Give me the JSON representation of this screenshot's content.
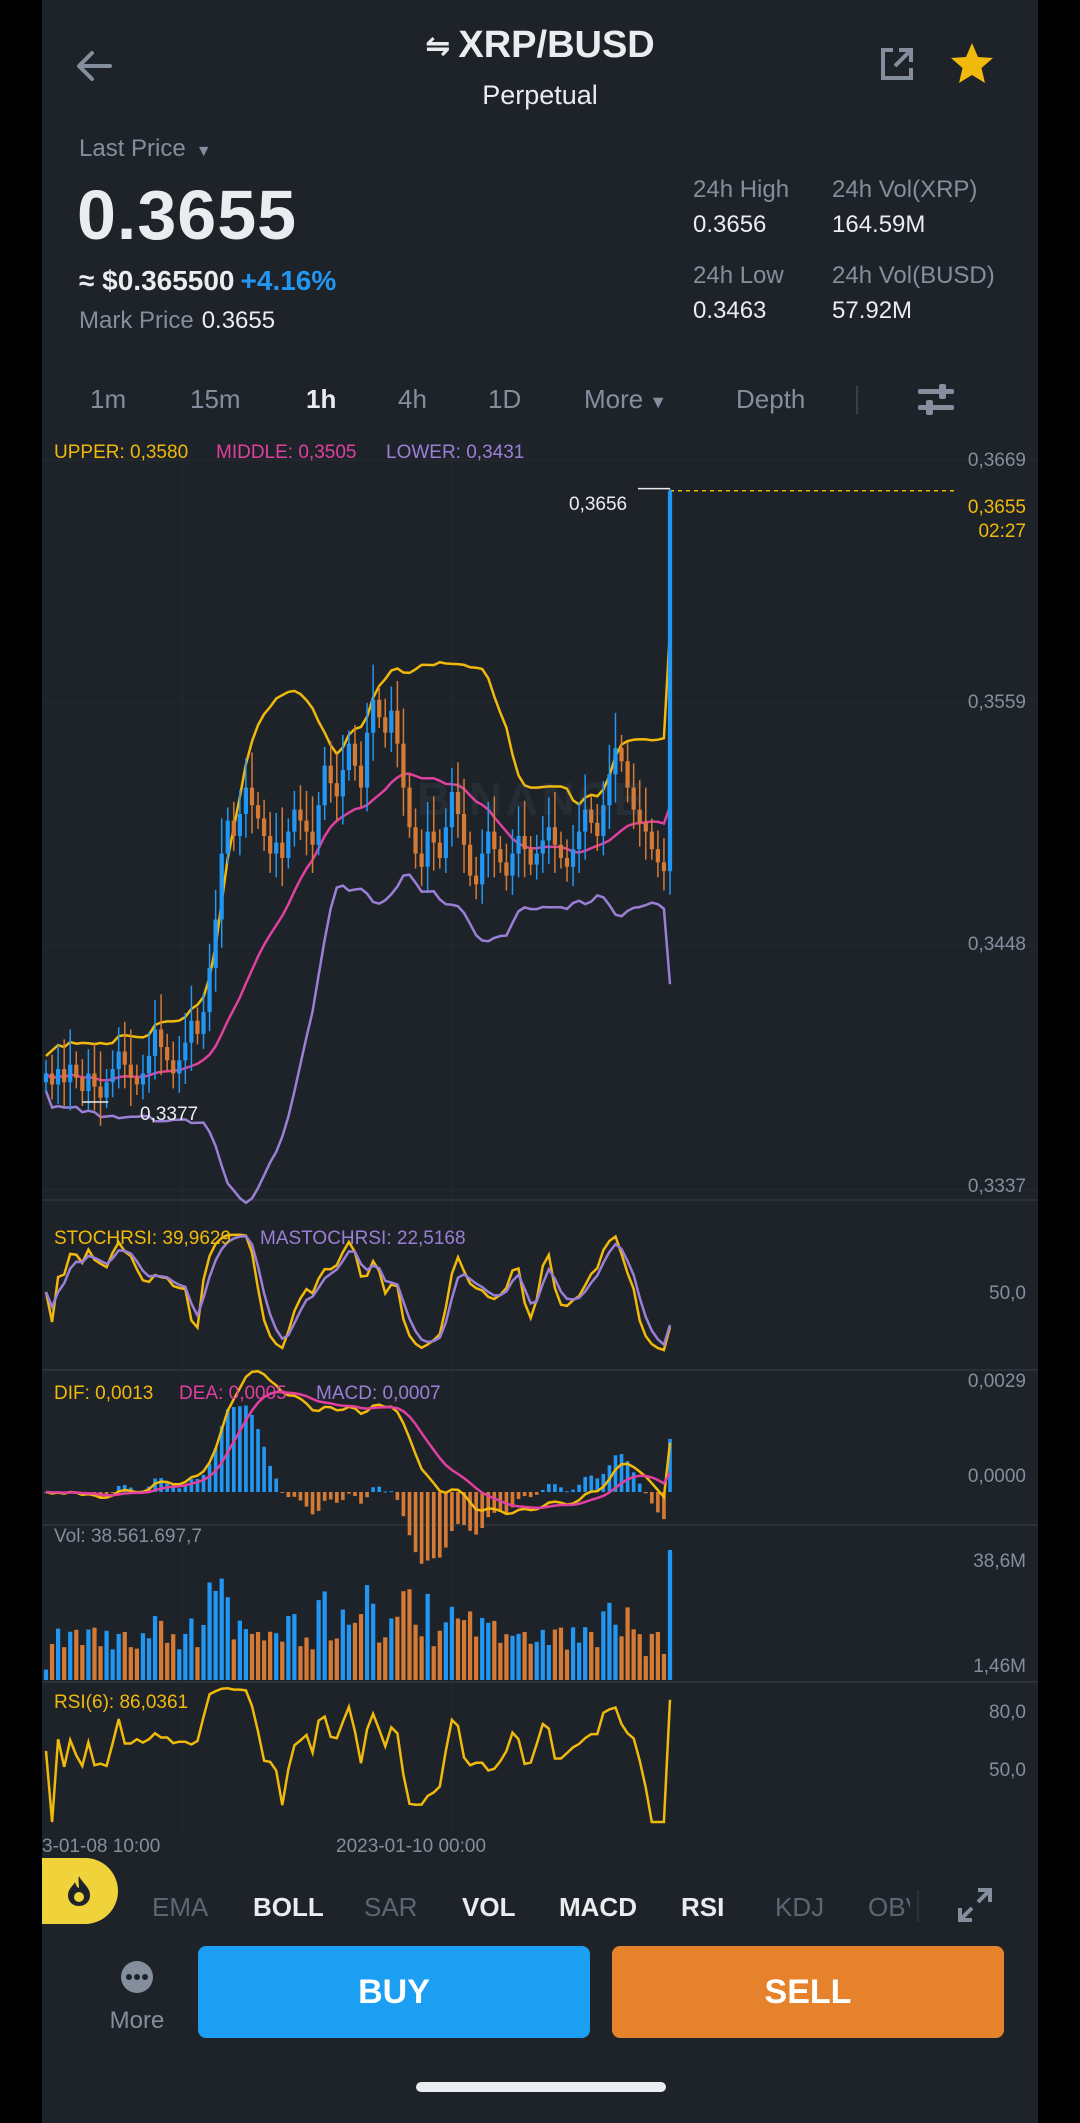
{
  "header": {
    "title": "XRP/BUSD",
    "subtitle": "Perpetual",
    "swap_icon": "swap-arrows-icon",
    "back_icon": "arrow-left-icon",
    "share_icon": "share-external-icon",
    "favorite_icon": "star-icon",
    "favorite_color": "#f0b90b"
  },
  "price": {
    "last_label": "Last Price",
    "last_price": "0.3655",
    "usd_value": "≈ $0.365500",
    "change": "+4.16%",
    "change_color": "#2196f3",
    "mark_label": "Mark Price",
    "mark_value": "0.3655"
  },
  "stats": {
    "high_label": "24h High",
    "high_value": "0.3656",
    "vol_base_label": "24h Vol(XRP)",
    "vol_base_value": "164.59M",
    "low_label": "24h Low",
    "low_value": "0.3463",
    "vol_quote_label": "24h Vol(BUSD)",
    "vol_quote_value": "57.92M"
  },
  "timeframes": {
    "items": [
      "1m",
      "15m",
      "1h",
      "4h",
      "1D"
    ],
    "active": "1h",
    "more": "More",
    "depth": "Depth"
  },
  "chart": {
    "boll": {
      "upper": "UPPER: 0,3580",
      "middle": "MIDDLE: 0,3505",
      "lower": "LOWER: 0,3431"
    },
    "price_axis": [
      "0,3669",
      "0,3559",
      "0,3448",
      "0,3337"
    ],
    "current_price": "0,3655",
    "countdown": "02:27",
    "high_marker": "0,3656",
    "low_marker": "0,3377",
    "watermark": "BINANCE",
    "stochrsi": {
      "k": "STOCHRSI: 39,9629",
      "d": "MASTOCHRSI: 22,5168",
      "axis": "50,0"
    },
    "macd": {
      "dif": "DIF: 0,0013",
      "dea": "DEA: 0,0005",
      "macd": "MACD: 0,0007",
      "axis_top": "0,0029",
      "axis_mid": "0,0000"
    },
    "vol": {
      "label": "Vol: 38.561.697,7",
      "axis_top": "38,6M",
      "axis_bottom": "1,46M"
    },
    "rsi": {
      "label": "RSI(6): 86,0361",
      "axis_top": "80,0",
      "axis_mid": "50,0"
    },
    "time_axis": [
      "3-01-08 10:00",
      "2023-01-10 00:00"
    ],
    "colors": {
      "up": "#2196f3",
      "down": "#d57a35",
      "upper": "#f0b90b",
      "middle": "#e040a0",
      "lower": "#9b7fd6"
    }
  },
  "chart_data": {
    "type": "candlestick",
    "pair": "XRP/BUSD",
    "interval": "1h",
    "ylim": [
      0.3337,
      0.3669
    ],
    "ticks": [
      0.3669,
      0.3559,
      0.3448,
      0.3337
    ],
    "start_label": "3-01-08 10:00",
    "mid_label": "2023-01-10 00:00",
    "last": 0.3655,
    "high": 0.3656,
    "low": 0.3377,
    "close": [
      0.339,
      0.3385,
      0.3392,
      0.3386,
      0.3394,
      0.3388,
      0.3382,
      0.339,
      0.3384,
      0.3379,
      0.3386,
      0.3392,
      0.34,
      0.3394,
      0.3388,
      0.3385,
      0.339,
      0.3398,
      0.341,
      0.3402,
      0.3396,
      0.339,
      0.3396,
      0.3404,
      0.3414,
      0.3408,
      0.3418,
      0.3438,
      0.346,
      0.349,
      0.3505,
      0.3498,
      0.3508,
      0.352,
      0.3512,
      0.3506,
      0.3498,
      0.349,
      0.3495,
      0.3488,
      0.35,
      0.351,
      0.3505,
      0.35,
      0.3494,
      0.3512,
      0.353,
      0.3522,
      0.3516,
      0.3528,
      0.354,
      0.353,
      0.352,
      0.3545,
      0.356,
      0.3552,
      0.3545,
      0.3555,
      0.354,
      0.352,
      0.3502,
      0.349,
      0.3484,
      0.35,
      0.3495,
      0.3488,
      0.3502,
      0.3518,
      0.3508,
      0.3494,
      0.348,
      0.3476,
      0.349,
      0.35,
      0.3492,
      0.3486,
      0.348,
      0.349,
      0.3498,
      0.3492,
      0.3485,
      0.349,
      0.3496,
      0.3502,
      0.3494,
      0.3488,
      0.3484,
      0.3492,
      0.35,
      0.351,
      0.3504,
      0.3498,
      0.3512,
      0.3526,
      0.3538,
      0.3532,
      0.352,
      0.351,
      0.3504,
      0.35,
      0.3492,
      0.3486,
      0.3482,
      0.3655
    ],
    "volume_peak": "38,6M",
    "volume_axis_low": "1,46M",
    "rsi_last": 86.0361,
    "stochrsi_last": 39.9629,
    "mastochrsi_last": 22.5168,
    "dif_last": 0.0013,
    "dea_last": 0.0005,
    "macd_last": 0.0007
  },
  "indicators": {
    "tabs": [
      "EMA",
      "BOLL",
      "SAR",
      "VOL",
      "MACD",
      "RSI",
      "KDJ",
      "OBV"
    ],
    "active": [
      "BOLL",
      "VOL",
      "MACD",
      "RSI"
    ],
    "fab_icon": "flame-icon",
    "expand_icon": "expand-arrows-icon"
  },
  "actions": {
    "more_label": "More",
    "more_icon": "more-dots-icon",
    "buy": "BUY",
    "sell": "SELL",
    "buy_color": "#1c9ff2",
    "sell_color": "#e6822b"
  }
}
